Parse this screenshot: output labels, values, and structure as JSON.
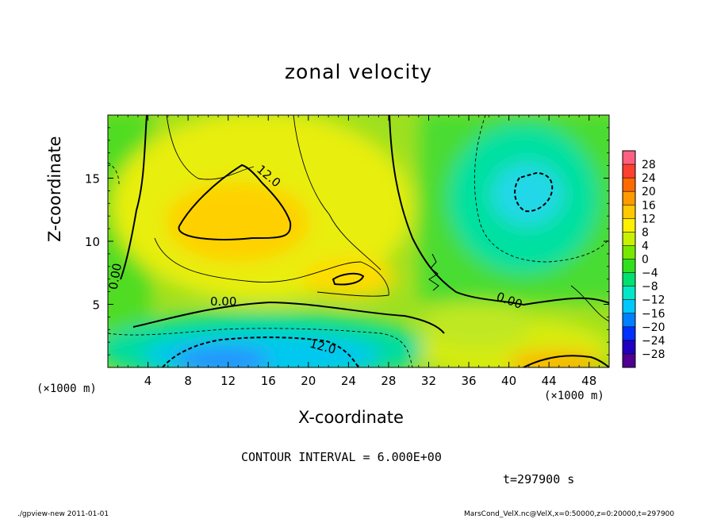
{
  "chart_data": {
    "type": "heatmap",
    "title": "zonal velocity",
    "xlabel": "X-coordinate",
    "ylabel": "Z-coordinate",
    "x_unit_label": "(×1000 m)",
    "xlim": [
      0,
      50
    ],
    "ylim": [
      0,
      20
    ],
    "xticks": [
      4,
      8,
      12,
      16,
      20,
      24,
      28,
      32,
      36,
      40,
      44,
      48
    ],
    "yticks": [
      5,
      10,
      15
    ],
    "colorbar": {
      "labels": [
        "28",
        "24",
        "20",
        "16",
        "12",
        "8",
        "4",
        "0",
        "−4",
        "−8",
        "−12",
        "−16",
        "−20",
        "−24",
        "−28"
      ],
      "colors": [
        "#ff6080",
        "#ff4030",
        "#ff6a00",
        "#ff9a00",
        "#ffc800",
        "#fff000",
        "#c8f000",
        "#78e800",
        "#30e020",
        "#00e070",
        "#00e8c8",
        "#00c8ff",
        "#0080ff",
        "#0030ff",
        "#2000c0",
        "#500090"
      ]
    },
    "contour_labels": [
      "12.0",
      "12.0",
      "0.00",
      "0.00",
      "0.00"
    ],
    "contour_interval": "CONTOUR INTERVAL = 6.000E+00",
    "time": "t=297900 s"
  },
  "footer": {
    "left": "./gpview-new  2011-01-01",
    "right": "MarsCond_VelX.nc@VelX,x=0:50000,z=0:20000,t=297900"
  }
}
